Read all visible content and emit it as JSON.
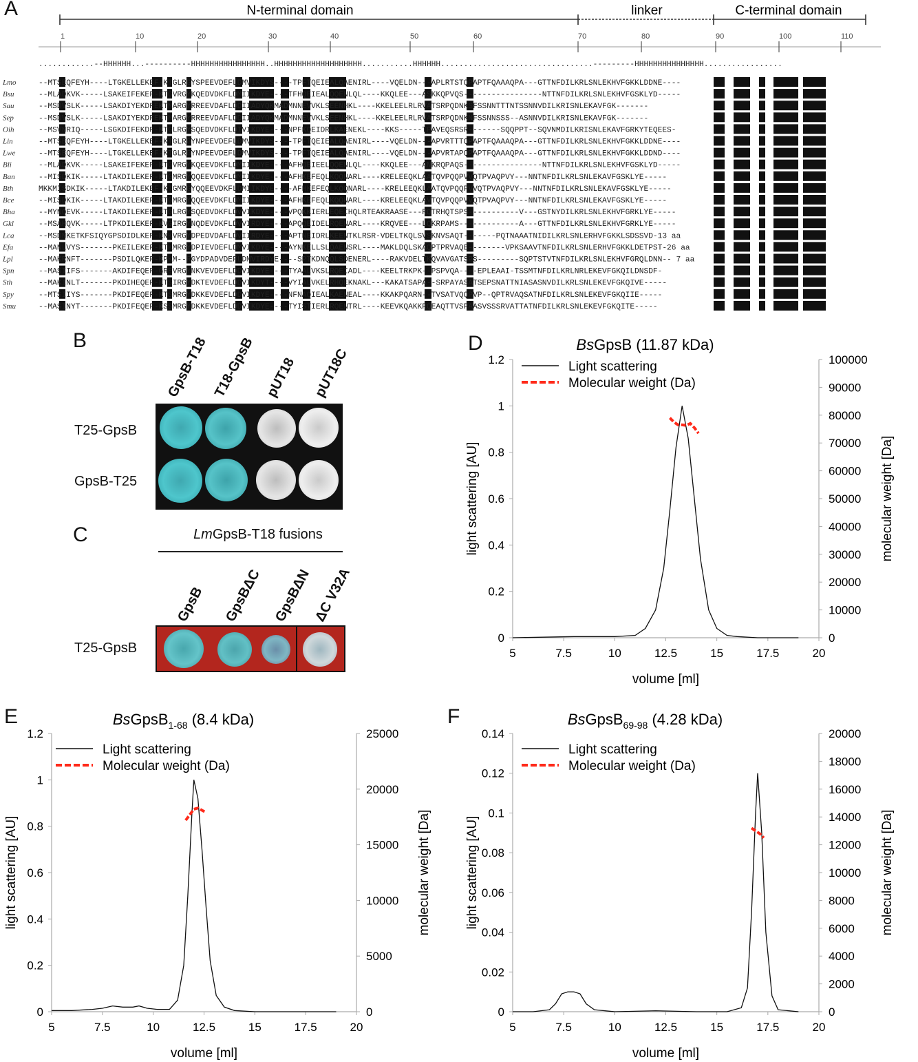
{
  "panel_letters": {
    "a": "A",
    "b": "B",
    "c": "C",
    "d": "D",
    "e": "E",
    "f": "F"
  },
  "panel_a": {
    "domains": {
      "n_terminal": "N-terminal domain",
      "linker": "linker",
      "c_terminal": "C-terminal domain"
    },
    "ruler_ticks": [
      "1",
      "10",
      "20",
      "30",
      "40",
      "50",
      "60",
      "70",
      "80",
      "90",
      "100",
      "110"
    ],
    "secondary_structure": "............--HHHHHH...----------HHHHHHHHHHHHHHHH..HHHHHHHHHHHHHHHHHHH...........HHHHHH.................................---------HHHHHHHHHHHHHHH.................",
    "rows": [
      {
        "name": "Lmo",
        "seq": "--MTSEQFEYH----LTGKELLEKEF-KTGLRGYSPEEVDEFLDMVIKDYS----TPFTQEIEALQAENIRL----VQELDN---APLRTSTQPAPTFQAAAQPA---GTTNFDILKRLSNLEKHVFGKKLDDNE----"
      },
      {
        "name": "Bsu",
        "seq": "--MLADKVK-----LSAKEIFEKEF-KTGVRGYKQEDVDKFLDMIIKDYE----TFHQEIEALQQENLQL----KKQLEE---ASKKQPVQS-----------------NTTNFDILKRLSNLEKHVFGSKLYD-----"
      },
      {
        "name": "Sau",
        "seq": "--MSDVSLK-----LSAKDIYEKDFEKTMARGYRREEVDAFLDDIIADYQKMADMNNEVVKLSEENHKL----KKELEELRLRVATSRPQDNKSFSSNNTTTNTSSNNVDILKRISNLEKAVFGK-------"
      },
      {
        "name": "Sep",
        "seq": "--MSDVSLK-----LSAKDIYEKDFEKTMARGYRREEVDAFLDDIIADYQKMADMNNEVVKLSEENHKL----KKELEELRLRVATSRPQDNKNFSSNNSSS--ASNNVDILKRISNLEKAVFGK-------"
      },
      {
        "name": "Oih",
        "seq": "--MSVNRIQ-----LSGKDIFEKDF-KTGLRGYSQEDVDKFLDIVIKDYE----NPFKQEIDRLKAENEKL----KKS-----TPAVEQSRSR-------SQQPPT--SQVNMDILKRISNLEKAVFGRKYTEQEES-"
      },
      {
        "name": "Lin",
        "seq": "--MTSEQFEYH----LTGKELLEKEF-KTGLRGYNPEEVDEFLDMVIKDYS----TPFTQEIEALQAENIRL----VQELDN---APVRTTTQPAPTFQAAAQPA---GTTNFDILKRLSNLEKHVFGKKLDDNE----"
      },
      {
        "name": "Lwe",
        "seq": "--MTSEQFEYH----LTGKELLEKEF-KTGLRGYNPEEVDEFLDMVIKDYS----TPFTQEIEALQAENIRL----VQELDN---APVRTAPQPAPTFQAAAQPA---GTTNFDILKRLSNLEKHVFGKKLDDND----"
      },
      {
        "name": "Bli",
        "seq": "--MLADKVK-----LSAKEIFEKEF-KTGVRGYKQEEVDKFLDMIIKDYE----AFHQEIEELQQENLQL----KKQLEE---ANKRQPAQS-----------------NTTNFDILKRLSNLEKHVFGSKLYD-----"
      },
      {
        "name": "Ban",
        "seq": "--MISDKIK-----LTAKDILEKEF-KTGMRGYQQEEVDKFLDMIIKDYE----AFHKEFEQLKQQNARL----KRELEEQKLAATQVPQQPVVQTPVAQPVY---NNTNFDILKRLSNLEKAVFGSKLYE-----"
      },
      {
        "name": "Bth",
        "seq": "MKKMISDKIK-----LTAKDILEKEF-KTGMRGYQQEEVDKFLDMIIKDYE----AFHKEFEQLKQQNARL----KRELEEQKLAATQVPQQPVVQTPVAQPVY---NNTNFDILKRLSNLEKAVFGSKLYE-----"
      },
      {
        "name": "Bce",
        "seq": "--MISDKIK-----LTAKDILEKEF-KTGMRGYQQEEVDKFLDMIIKDYE----AFHKEFEQLKQQNARL----KRELEEQKLAVTQVPQQPVVQTPVAQPVY---NNTNFDILKRLSNLEKAVFGSKLYE-----"
      },
      {
        "name": "Bha",
        "seq": "--MYNQEVK-----LTAKDILEKEF-KTGLRGYSQEDVDKFLDVVIKDYE----VPQKKIERLEQEIHQLRTEAKRAASE---RQTRHQTSPS-----------V---GSTNYDILKRLSNLEKHVFGRKLYE-----"
      },
      {
        "name": "Gkl",
        "seq": "--MSAHQVK-----LTPKDILEKEF-KVGIRGYNQDEVDKFLDVVIRDYE----APQQEIDELRQENARL----KRQVEE---LQKRPAMS-------------A---GTTNFDILKRLSNLEKHVFGRKLYE-----"
      },
      {
        "name": "Lca",
        "seq": "--MSDNKETKFSIQYGPSDIDLKEF-KNKVRGYDPEDVDAFLDVIIRDYE----APTNEIDRLKEENTKLRSR-VDELTKQLSVSKNVSAQT-------PQTNAAATNIDILKRLSNLERHVFGKKLSDSSVD-13 aa"
      },
      {
        "name": "Efa",
        "seq": "--MANLVYS-------PKEILEKEF-KTKMRGYDPIEVDEFLDMVIKDYE----AYNKELLSLQAENSRL----MAKLDQLSKAQPTPRVAQE--------VPKSAAVTNFDILKRLSNLERHVFGKKLDETPST-26 aa"
      },
      {
        "name": "Lpl",
        "seq": "--MAKRNFT-------PSDILQKEF-KPKM--RGYDPADVDEFLDMVIRDYE----SPTKDNQQLSDENERL----RAKVDELTKQVAVGATSPS---------SQPTSTVTNFDILKRLSNLEKHVFGRQLDNN-- 7 aa"
      },
      {
        "name": "Spn",
        "seq": "--MASIIFS-------AKDIFEQEF-GREVRGYNKVEVDEFLDDVIKDYE----TYAALVKSLRQEIADL----KEELTRKPK--PSPVQA----EPLEAAI-TSSMTNFDILKRLNRLEKEVFGKQILDNSDF-"
      },
      {
        "name": "Sth",
        "seq": "--MAKINLT-------PKDIHEQEF-KTSIRGYDKTEVDEFLDDVIKDYT----VYIALVKELRHQEKNAKL---KAKATSAPA--SRPAYASATSEPSNATTNIASASNVDILKRLSNLEKEVFGKQIVE-----"
      },
      {
        "name": "Spy",
        "seq": "--MTSIIYS-------PKDIFEQEF-KTSMRGYDKKEVDEFLDDVIKDYE----NFNAQIEALKAENEAL----KKAKPQARN--TVSATVQQPVP--QPTRVAQSATNFDILKRLSNLEKEVFGKQIIE-----"
      },
      {
        "name": "Smu",
        "seq": "--MASINYT-------PKDIFEQEF-KSSMRGYDKKEVDEFLDDVIKDYE----TYISTIERLRQENTRL----KEEVKQAKKRQEAQTTVSPAASVSSSRVATTATNFDILKRLSNLEKEVFGKQITE-----"
      }
    ]
  },
  "panel_b": {
    "columns": [
      "GpsB-T18",
      "T18-GpsB",
      "pUT18",
      "pUT18C"
    ],
    "rows": [
      "T25-GpsB",
      "GpsB-T25"
    ]
  },
  "panel_c": {
    "header_italic": "Lm",
    "header_rest": "GpsB-T18 fusions",
    "columns": [
      "GpsB",
      "GpsBΔC",
      "GpsBΔN",
      "ΔC V32A"
    ],
    "row": "T25-GpsB"
  },
  "chart_data": [
    {
      "type": "line",
      "panel": "D",
      "title_italic": "Bs",
      "title_rest": "GpsB (11.87 kDa)",
      "xlabel": "volume [ml]",
      "ylabel": "light scattering [AU]",
      "y2label": "molecular weight [Da]",
      "xlim": [
        5,
        20
      ],
      "ylim": [
        0,
        1.2
      ],
      "y2lim": [
        0,
        100000
      ],
      "xticks": [
        "5",
        "7.5",
        "10",
        "12.5",
        "15",
        "17.5",
        "20"
      ],
      "yticks": [
        "0",
        "0.2",
        "0.4",
        "0.6",
        "0.8",
        "1",
        "1.2"
      ],
      "y2ticks": [
        "0",
        "10000",
        "20000",
        "30000",
        "40000",
        "50000",
        "60000",
        "70000",
        "80000",
        "90000",
        "100000"
      ],
      "legend_position": "top-left",
      "series": [
        {
          "name": "Light scattering",
          "color": "#111111",
          "style": "solid",
          "x": [
            5,
            8,
            10,
            11,
            11.5,
            12,
            12.4,
            12.7,
            13,
            13.3,
            13.6,
            13.9,
            14.2,
            14.6,
            15,
            15.5,
            16,
            17,
            18,
            19
          ],
          "y": [
            0,
            0.005,
            0.005,
            0.01,
            0.04,
            0.12,
            0.3,
            0.55,
            0.82,
            1.0,
            0.86,
            0.6,
            0.34,
            0.12,
            0.04,
            0.01,
            0.005,
            0,
            0,
            0
          ]
        },
        {
          "name": "Molecular weight (Da)",
          "color": "#ff2a1a",
          "style": "dashed",
          "x": [
            12.7,
            12.9,
            13.1,
            13.3,
            13.5,
            13.7,
            13.9,
            14.1
          ],
          "y": [
            79000,
            77500,
            76500,
            76500,
            76300,
            77000,
            75500,
            73500
          ]
        }
      ]
    },
    {
      "type": "line",
      "panel": "E",
      "title_italic": "Bs",
      "title_rest": "GpsB",
      "title_sub": "1-68",
      "title_tail": " (8.4 kDa)",
      "xlabel": "volume [ml]",
      "ylabel": "light scattering [AU]",
      "y2label": "molecular weight [Da]",
      "xlim": [
        5,
        20
      ],
      "ylim": [
        0,
        1.2
      ],
      "y2lim": [
        0,
        25000
      ],
      "xticks": [
        "5",
        "7.5",
        "10",
        "12.5",
        "15",
        "17.5",
        "20"
      ],
      "yticks": [
        "0",
        "0.2",
        "0.4",
        "0.6",
        "0.8",
        "1",
        "1.2"
      ],
      "y2ticks": [
        "0",
        "5000",
        "10000",
        "15000",
        "20000",
        "25000"
      ],
      "legend_position": "top-left",
      "series": [
        {
          "name": "Light scattering",
          "color": "#111111",
          "style": "solid",
          "x": [
            5,
            6,
            7,
            7.5,
            8,
            8.5,
            9,
            9.3,
            9.7,
            10.2,
            10.8,
            11.2,
            11.5,
            11.7,
            11.9,
            12.0,
            12.2,
            12.4,
            12.6,
            12.8,
            13.1,
            13.5,
            14,
            15,
            16,
            17,
            18,
            19
          ],
          "y": [
            0.005,
            0.005,
            0.01,
            0.015,
            0.025,
            0.02,
            0.02,
            0.025,
            0.015,
            0.01,
            0.01,
            0.05,
            0.2,
            0.5,
            0.85,
            1.0,
            0.92,
            0.7,
            0.45,
            0.22,
            0.07,
            0.02,
            0.005,
            0,
            0,
            0,
            0,
            0
          ]
        },
        {
          "name": "Molecular weight (Da)",
          "color": "#ff2a1a",
          "style": "dashed",
          "x": [
            11.6,
            11.8,
            12.0,
            12.2,
            12.4,
            12.6
          ],
          "y": [
            17200,
            17700,
            18200,
            18300,
            18100,
            17900
          ]
        }
      ]
    },
    {
      "type": "line",
      "panel": "F",
      "title_italic": "Bs",
      "title_rest": "GpsB",
      "title_sub": "69-98",
      "title_tail": " (4.28 kDa)",
      "xlabel": "volume [ml]",
      "ylabel": "light scattering [AU]",
      "y2label": "molecular weight [Da]",
      "xlim": [
        5,
        20
      ],
      "ylim": [
        0,
        0.14
      ],
      "y2lim": [
        0,
        20000
      ],
      "xticks": [
        "5",
        "7.5",
        "10",
        "12.5",
        "15",
        "17.5",
        "20"
      ],
      "yticks": [
        "0",
        "0.02",
        "0.04",
        "0.06",
        "0.08",
        "0.1",
        "0.12",
        "0.14"
      ],
      "y2ticks": [
        "0",
        "2000",
        "4000",
        "6000",
        "8000",
        "10000",
        "12000",
        "14000",
        "16000",
        "18000",
        "20000"
      ],
      "legend_position": "top-left",
      "series": [
        {
          "name": "Light scattering",
          "color": "#111111",
          "style": "solid",
          "x": [
            5,
            6,
            6.8,
            7.1,
            7.4,
            7.7,
            8.0,
            8.3,
            8.6,
            9.0,
            10,
            12,
            14,
            15.5,
            16.2,
            16.5,
            16.7,
            16.9,
            17.0,
            17.2,
            17.4,
            17.7,
            18,
            19
          ],
          "y": [
            0,
            0,
            0.001,
            0.004,
            0.009,
            0.01,
            0.01,
            0.009,
            0.004,
            0.001,
            0,
            0.0005,
            0,
            0,
            0.002,
            0.012,
            0.05,
            0.1,
            0.12,
            0.09,
            0.04,
            0.008,
            0.001,
            0
          ]
        },
        {
          "name": "Molecular weight (Da)",
          "color": "#ff2a1a",
          "style": "dashed",
          "x": [
            16.7,
            16.9,
            17.1,
            17.3
          ],
          "y": [
            13200,
            13000,
            12800,
            12500
          ]
        }
      ]
    }
  ]
}
